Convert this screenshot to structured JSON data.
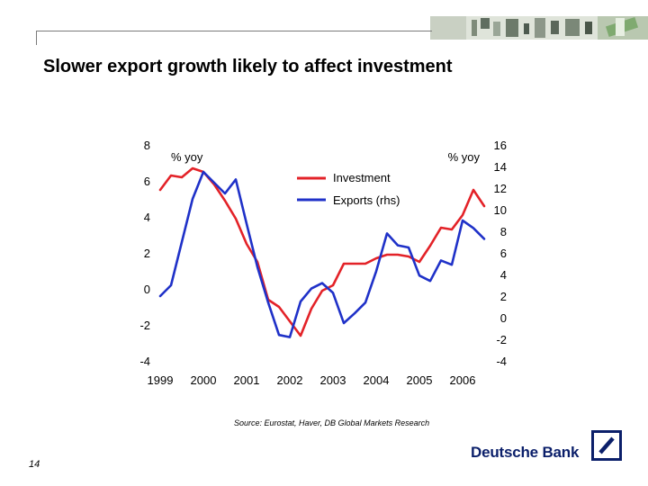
{
  "slide": {
    "title": "Slower export growth likely to affect investment",
    "source": "Source: Eurostat, Haver, DB Global Markets Research",
    "page_number": "14",
    "brand": "Deutsche Bank"
  },
  "colors": {
    "investment": "#e32228",
    "exports": "#1f31c8",
    "brand": "#0b1f6a"
  },
  "chart_data": {
    "type": "line",
    "x_ticks": [
      "1999",
      "2000",
      "2001",
      "2002",
      "2003",
      "2004",
      "2005",
      "2006"
    ],
    "left_axis": {
      "label": "% yoy",
      "ylim": [
        -4,
        8
      ],
      "ticks": [
        "8",
        "6",
        "4",
        "2",
        "0",
        "-2",
        "-4"
      ]
    },
    "right_axis": {
      "label": "% yoy",
      "ylim": [
        -4,
        16
      ],
      "ticks": [
        "16",
        "14",
        "12",
        "10",
        "8",
        "6",
        "4",
        "2",
        "0",
        "-2",
        "-4"
      ]
    },
    "legend_position": "top-right",
    "grid": false,
    "series": [
      {
        "name": "Investment",
        "axis": "left",
        "color": "#e32228",
        "x": [
          1999.0,
          1999.25,
          1999.5,
          1999.75,
          2000.0,
          2000.25,
          2000.5,
          2000.75,
          2001.0,
          2001.25,
          2001.5,
          2001.75,
          2002.0,
          2002.25,
          2002.5,
          2002.75,
          2003.0,
          2003.25,
          2003.5,
          2003.75,
          2004.0,
          2004.25,
          2004.5,
          2004.75,
          2005.0,
          2005.25,
          2005.5,
          2005.75,
          2006.0,
          2006.25,
          2006.5
        ],
        "y": [
          5.5,
          6.3,
          6.2,
          6.7,
          6.5,
          5.8,
          4.9,
          3.9,
          2.5,
          1.5,
          -0.6,
          -1.0,
          -1.8,
          -2.6,
          -1.1,
          -0.1,
          0.2,
          1.4,
          1.4,
          1.4,
          1.7,
          1.9,
          1.9,
          1.8,
          1.5,
          2.4,
          3.4,
          3.3,
          4.1,
          5.5,
          4.6
        ]
      },
      {
        "name": "Exports (rhs)",
        "axis": "right",
        "color": "#1f31c8",
        "x": [
          1999.0,
          1999.25,
          1999.5,
          1999.75,
          2000.0,
          2000.25,
          2000.5,
          2000.75,
          2001.0,
          2001.25,
          2001.5,
          2001.75,
          2002.0,
          2002.25,
          2002.5,
          2002.75,
          2003.0,
          2003.25,
          2003.5,
          2003.75,
          2004.0,
          2004.25,
          2004.5,
          2004.75,
          2005.0,
          2005.25,
          2005.5,
          2005.75,
          2006.0,
          2006.25,
          2006.5
        ],
        "y": [
          2.0,
          3.0,
          7.0,
          11.0,
          13.5,
          12.5,
          11.5,
          12.8,
          8.7,
          4.7,
          1.4,
          -1.6,
          -1.8,
          1.5,
          2.7,
          3.2,
          2.3,
          -0.5,
          0.4,
          1.4,
          4.3,
          7.8,
          6.7,
          6.5,
          3.9,
          3.4,
          5.3,
          4.9,
          9.0,
          8.3,
          7.3
        ]
      }
    ]
  }
}
